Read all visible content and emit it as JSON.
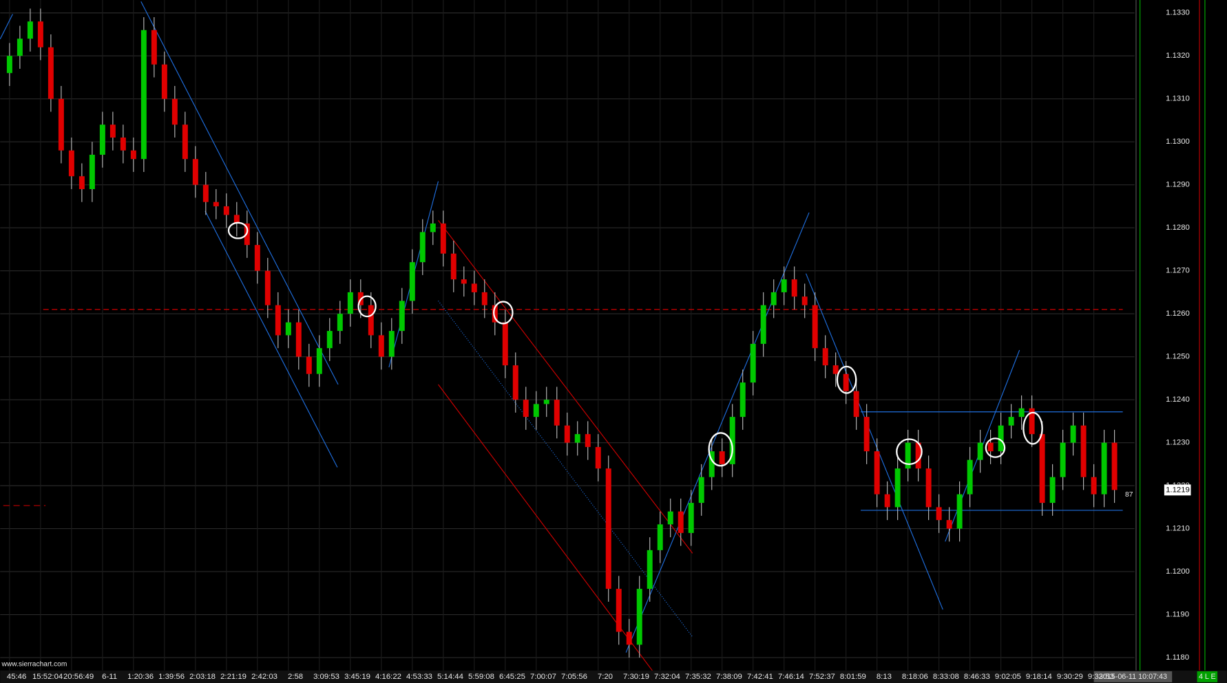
{
  "chart_data": {
    "type": "candlestick",
    "categories": [
      "45:46",
      null,
      null,
      "15:52:04",
      null,
      null,
      "20:56:49",
      null,
      null,
      "6-11",
      null,
      null,
      "1:20:36",
      null,
      null,
      "1:39:56",
      null,
      null,
      "2:03:18",
      null,
      null,
      "2:21:19",
      null,
      null,
      "2:42:03",
      null,
      null,
      "2:58",
      null,
      null,
      "3:09:53",
      null,
      null,
      "3:45:19",
      null,
      null,
      "4:16:22",
      null,
      null,
      "4:53:33",
      null,
      null,
      "5:14:44",
      null,
      null,
      "5:59:08",
      null,
      null,
      "6:45:25",
      null,
      null,
      "7:00:07",
      null,
      null,
      "7:05:56",
      null,
      null,
      "7:20",
      null,
      null,
      "7:30:19",
      null,
      null,
      "7:32:04",
      null,
      null,
      "7:35:32",
      null,
      null,
      "7:38:09",
      null,
      null,
      "7:42:41",
      null,
      null,
      "7:46:14",
      null,
      null,
      "7:52:37",
      null,
      null,
      "8:01:59",
      null,
      null,
      "8:13",
      null,
      null,
      "8:18:06",
      null,
      null,
      "8:33:08",
      null,
      null,
      "8:46:33",
      null,
      null,
      "9:02:05",
      null,
      null,
      "9:18:14",
      null,
      null,
      "9:30:29",
      null,
      null,
      "9:33:53",
      null,
      null
    ],
    "open": [
      1.1316,
      1.132,
      1.1324,
      1.1328,
      1.1322,
      1.131,
      1.1298,
      1.1292,
      1.1289,
      1.1297,
      1.1304,
      1.1301,
      1.1298,
      1.1296,
      1.1326,
      1.1318,
      1.131,
      1.1304,
      1.1296,
      1.129,
      1.1286,
      1.1285,
      1.1283,
      1.1281,
      1.1276,
      1.127,
      1.1262,
      1.1255,
      1.1258,
      1.125,
      1.1246,
      1.1252,
      1.1256,
      1.126,
      1.1265,
      1.1262,
      1.1255,
      1.125,
      1.1256,
      1.1263,
      1.1272,
      1.1279,
      1.1281,
      1.1274,
      1.1268,
      1.1267,
      1.1265,
      1.1262,
      1.1258,
      1.1248,
      1.124,
      1.1236,
      1.1239,
      1.124,
      1.1234,
      1.123,
      1.1232,
      1.1229,
      1.1224,
      1.1196,
      1.1186,
      1.1183,
      1.1196,
      1.1205,
      1.1211,
      1.1214,
      1.1209,
      1.1216,
      1.1222,
      1.1228,
      1.1225,
      1.1236,
      1.1244,
      1.1253,
      1.1262,
      1.1265,
      1.1268,
      1.1264,
      1.1262,
      1.1252,
      1.1248,
      1.1246,
      1.1242,
      1.1236,
      1.1228,
      1.1218,
      1.1215,
      1.1224,
      1.123,
      1.1224,
      1.1215,
      1.1212,
      1.121,
      1.1218,
      1.1226,
      1.123,
      1.1228,
      1.1234,
      1.1236,
      1.1238,
      1.1232,
      1.1216,
      1.1222,
      1.123,
      1.1234,
      1.1222,
      1.1218,
      1.123
    ],
    "high": [
      1.1323,
      1.1327,
      1.1331,
      1.1331,
      1.1325,
      1.1313,
      1.1301,
      1.1295,
      1.13,
      1.1307,
      1.1307,
      1.1304,
      1.1301,
      1.1329,
      1.1329,
      1.1321,
      1.1313,
      1.1307,
      1.1299,
      1.1293,
      1.1289,
      1.1288,
      1.1286,
      1.1284,
      1.1279,
      1.1273,
      1.1265,
      1.1261,
      1.1261,
      1.1253,
      1.1255,
      1.1259,
      1.1263,
      1.1268,
      1.1268,
      1.1265,
      1.1258,
      1.1259,
      1.1266,
      1.1275,
      1.1282,
      1.1284,
      1.1284,
      1.1277,
      1.1271,
      1.127,
      1.1268,
      1.1265,
      1.1261,
      1.1251,
      1.1243,
      1.1242,
      1.1243,
      1.1243,
      1.1237,
      1.1235,
      1.1235,
      1.1232,
      1.1227,
      1.1199,
      1.1189,
      1.1199,
      1.1208,
      1.1214,
      1.1217,
      1.1217,
      1.1219,
      1.1225,
      1.1231,
      1.1231,
      1.1239,
      1.1247,
      1.1256,
      1.1265,
      1.1268,
      1.1271,
      1.1271,
      1.1267,
      1.1265,
      1.1255,
      1.1251,
      1.1249,
      1.1245,
      1.1239,
      1.1231,
      1.1221,
      1.1227,
      1.1233,
      1.1233,
      1.1227,
      1.1218,
      1.1215,
      1.1221,
      1.1229,
      1.1233,
      1.1233,
      1.1237,
      1.1239,
      1.1241,
      1.1241,
      1.1235,
      1.1225,
      1.1233,
      1.1237,
      1.1237,
      1.1225,
      1.1233,
      1.1233
    ],
    "low": [
      1.1313,
      1.1317,
      1.1321,
      1.1319,
      1.1307,
      1.1295,
      1.1289,
      1.1286,
      1.1286,
      1.1294,
      1.1298,
      1.1295,
      1.1293,
      1.1293,
      1.1315,
      1.1307,
      1.1301,
      1.1293,
      1.1287,
      1.1283,
      1.1282,
      1.128,
      1.1278,
      1.1273,
      1.1267,
      1.1259,
      1.1252,
      1.1252,
      1.1247,
      1.1243,
      1.1243,
      1.1249,
      1.1253,
      1.1257,
      1.1259,
      1.1252,
      1.1247,
      1.1247,
      1.1253,
      1.126,
      1.1269,
      1.1276,
      1.1271,
      1.1265,
      1.1264,
      1.1262,
      1.1259,
      1.1255,
      1.1245,
      1.1237,
      1.1233,
      1.1233,
      1.1236,
      1.1231,
      1.1227,
      1.1227,
      1.1226,
      1.1221,
      1.1193,
      1.1183,
      1.118,
      1.118,
      1.1193,
      1.1202,
      1.1208,
      1.1206,
      1.1206,
      1.1213,
      1.1219,
      1.1222,
      1.1222,
      1.1233,
      1.1241,
      1.125,
      1.1259,
      1.1262,
      1.1261,
      1.1259,
      1.1249,
      1.1245,
      1.1243,
      1.1239,
      1.1233,
      1.1225,
      1.1215,
      1.1212,
      1.1212,
      1.1221,
      1.1221,
      1.1212,
      1.1209,
      1.1207,
      1.1207,
      1.1215,
      1.1223,
      1.1225,
      1.1225,
      1.1231,
      1.1233,
      1.1229,
      1.1213,
      1.1213,
      1.1219,
      1.1227,
      1.1219,
      1.1215,
      1.1215,
      1.1216
    ],
    "close": [
      1.132,
      1.1324,
      1.1328,
      1.1322,
      1.131,
      1.1298,
      1.1292,
      1.1289,
      1.1297,
      1.1304,
      1.1301,
      1.1298,
      1.1296,
      1.1326,
      1.1318,
      1.131,
      1.1304,
      1.1296,
      1.129,
      1.1286,
      1.1285,
      1.1283,
      1.1281,
      1.1276,
      1.127,
      1.1262,
      1.1255,
      1.1258,
      1.125,
      1.1246,
      1.1252,
      1.1256,
      1.126,
      1.1265,
      1.1262,
      1.1255,
      1.125,
      1.1256,
      1.1263,
      1.1272,
      1.1279,
      1.1281,
      1.1274,
      1.1268,
      1.1267,
      1.1265,
      1.1262,
      1.1258,
      1.1248,
      1.124,
      1.1236,
      1.1239,
      1.124,
      1.1234,
      1.123,
      1.1232,
      1.1229,
      1.1224,
      1.1196,
      1.1186,
      1.1183,
      1.1196,
      1.1205,
      1.1211,
      1.1214,
      1.1209,
      1.1216,
      1.1222,
      1.1228,
      1.1225,
      1.1236,
      1.1244,
      1.1253,
      1.1262,
      1.1265,
      1.1268,
      1.1264,
      1.1262,
      1.1252,
      1.1248,
      1.1246,
      1.1242,
      1.1236,
      1.1228,
      1.1218,
      1.1215,
      1.1224,
      1.123,
      1.1224,
      1.1215,
      1.1212,
      1.121,
      1.1218,
      1.1226,
      1.123,
      1.1228,
      1.1234,
      1.1236,
      1.1238,
      1.1232,
      1.1216,
      1.1222,
      1.123,
      1.1234,
      1.1222,
      1.1218,
      1.123,
      1.1219
    ],
    "up_color": "#00c800",
    "down_color": "#e00000",
    "ylim": [
      1.1177,
      1.1333
    ],
    "yticks": [
      {
        "value": 1.133,
        "label": "1.1330"
      },
      {
        "value": 1.132,
        "label": "1.1320"
      },
      {
        "value": 1.131,
        "label": "1.1310"
      },
      {
        "value": 1.13,
        "label": "1.1300"
      },
      {
        "value": 1.129,
        "label": "1.1290"
      },
      {
        "value": 1.128,
        "label": "1.1280"
      },
      {
        "value": 1.127,
        "label": "1.1270"
      },
      {
        "value": 1.126,
        "label": "1.1260"
      },
      {
        "value": 1.125,
        "label": "1.1250"
      },
      {
        "value": 1.124,
        "label": "1.1240"
      },
      {
        "value": 1.123,
        "label": "1.1230"
      },
      {
        "value": 1.122,
        "label": "1.1220"
      },
      {
        "value": 1.121,
        "label": "1.1210"
      },
      {
        "value": 1.12,
        "label": "1.1200"
      },
      {
        "value": 1.119,
        "label": "1.1190"
      },
      {
        "value": 1.118,
        "label": "1.1180"
      }
    ],
    "grid": true,
    "reference_line": {
      "value": 1.1261,
      "color": "#c00000"
    },
    "last_price": 1.1219,
    "side_label": "87",
    "watermark": "www.sierrachart.com",
    "timestamp": "2015-06-11 10:07:43",
    "status": "4 L E"
  }
}
